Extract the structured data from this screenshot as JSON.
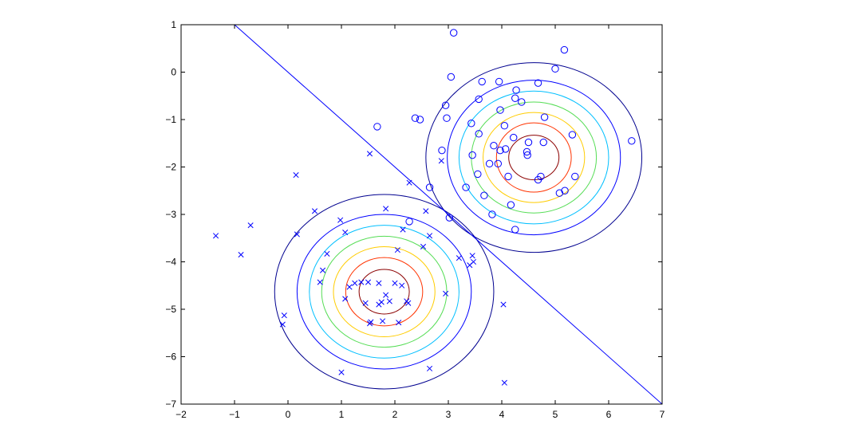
{
  "chart_data": {
    "type": "scatter",
    "title": "",
    "xlabel": "",
    "ylabel": "",
    "xlim": [
      -2,
      7
    ],
    "ylim": [
      -7,
      1
    ],
    "grid": false,
    "legend": "none",
    "x_ticks": [
      "−2",
      "−1",
      "0",
      "1",
      "2",
      "3",
      "4",
      "5",
      "6",
      "7"
    ],
    "y_ticks": [
      "1",
      "0",
      "−1",
      "−2",
      "−3",
      "−4",
      "−5",
      "−6",
      "−7"
    ],
    "x_tick_values": [
      -2,
      -1,
      0,
      1,
      2,
      3,
      4,
      5,
      6,
      7
    ],
    "y_tick_values": [
      1,
      0,
      -1,
      -2,
      -3,
      -4,
      -5,
      -6,
      -7
    ],
    "series": [
      {
        "marker": "circle",
        "color": "#0000ff",
        "points": [
          [
            3.1,
            0.83
          ],
          [
            5.17,
            0.47
          ],
          [
            3.05,
            -0.1
          ],
          [
            5.0,
            0.07
          ],
          [
            3.63,
            -0.2
          ],
          [
            3.95,
            -0.2
          ],
          [
            4.68,
            -0.23
          ],
          [
            4.27,
            -0.38
          ],
          [
            3.57,
            -0.57
          ],
          [
            4.25,
            -0.55
          ],
          [
            4.37,
            -0.63
          ],
          [
            2.95,
            -0.7
          ],
          [
            3.97,
            -0.8
          ],
          [
            1.67,
            -1.15
          ],
          [
            2.38,
            -0.97
          ],
          [
            2.47,
            -1.0
          ],
          [
            2.97,
            -0.97
          ],
          [
            4.8,
            -0.95
          ],
          [
            3.43,
            -1.08
          ],
          [
            4.05,
            -1.13
          ],
          [
            3.57,
            -1.3
          ],
          [
            5.32,
            -1.32
          ],
          [
            4.22,
            -1.38
          ],
          [
            4.78,
            -1.48
          ],
          [
            3.85,
            -1.55
          ],
          [
            4.5,
            -1.48
          ],
          [
            2.88,
            -1.65
          ],
          [
            3.97,
            -1.65
          ],
          [
            4.07,
            -1.62
          ],
          [
            4.47,
            -1.68
          ],
          [
            4.48,
            -1.75
          ],
          [
            3.45,
            -1.75
          ],
          [
            3.77,
            -1.93
          ],
          [
            3.93,
            -1.93
          ],
          [
            4.12,
            -2.2
          ],
          [
            3.55,
            -2.15
          ],
          [
            4.73,
            -2.2
          ],
          [
            5.37,
            -2.2
          ],
          [
            4.68,
            -2.27
          ],
          [
            3.33,
            -2.43
          ],
          [
            2.65,
            -2.43
          ],
          [
            5.18,
            -2.5
          ],
          [
            5.08,
            -2.55
          ],
          [
            3.67,
            -2.6
          ],
          [
            4.17,
            -2.8
          ],
          [
            3.82,
            -3.0
          ],
          [
            3.02,
            -3.07
          ],
          [
            2.27,
            -3.15
          ],
          [
            4.25,
            -3.32
          ],
          [
            6.43,
            -1.45
          ]
        ]
      },
      {
        "marker": "x",
        "color": "#0000ff",
        "points": [
          [
            1.53,
            -1.72
          ],
          [
            2.87,
            -1.87
          ],
          [
            0.15,
            -2.17
          ],
          [
            2.27,
            -2.33
          ],
          [
            0.5,
            -2.93
          ],
          [
            1.83,
            -2.88
          ],
          [
            2.58,
            -2.93
          ],
          [
            -1.35,
            -3.45
          ],
          [
            -0.7,
            -3.23
          ],
          [
            0.17,
            -3.42
          ],
          [
            0.98,
            -3.12
          ],
          [
            1.07,
            -3.38
          ],
          [
            2.15,
            -3.32
          ],
          [
            2.65,
            -3.45
          ],
          [
            -0.88,
            -3.85
          ],
          [
            0.73,
            -3.83
          ],
          [
            2.53,
            -3.68
          ],
          [
            2.05,
            -3.75
          ],
          [
            3.2,
            -3.92
          ],
          [
            3.45,
            -3.87
          ],
          [
            3.47,
            -4.0
          ],
          [
            3.4,
            -4.07
          ],
          [
            0.65,
            -4.18
          ],
          [
            0.6,
            -4.43
          ],
          [
            1.37,
            -4.43
          ],
          [
            1.5,
            -4.43
          ],
          [
            1.25,
            -4.45
          ],
          [
            1.7,
            -4.45
          ],
          [
            2.0,
            -4.45
          ],
          [
            2.13,
            -4.5
          ],
          [
            1.15,
            -4.53
          ],
          [
            2.95,
            -4.67
          ],
          [
            1.07,
            -4.78
          ],
          [
            1.83,
            -4.7
          ],
          [
            1.9,
            -4.83
          ],
          [
            2.22,
            -4.83
          ],
          [
            1.75,
            -4.85
          ],
          [
            1.45,
            -4.87
          ],
          [
            1.7,
            -4.9
          ],
          [
            4.03,
            -4.9
          ],
          [
            -0.07,
            -5.13
          ],
          [
            1.55,
            -5.27
          ],
          [
            1.77,
            -5.25
          ],
          [
            2.07,
            -5.28
          ],
          [
            -0.1,
            -5.32
          ],
          [
            1.53,
            -5.3
          ],
          [
            2.65,
            -6.25
          ],
          [
            1.0,
            -6.33
          ],
          [
            4.05,
            -6.55
          ],
          [
            2.25,
            -4.87
          ]
        ]
      }
    ],
    "decision_boundary": {
      "points": [
        [
          -1,
          1
        ],
        [
          7,
          -7
        ]
      ],
      "color": "#0000ff"
    },
    "contours": [
      {
        "center": [
          4.6,
          -1.8
        ],
        "rings": [
          {
            "rx": 2.02,
            "ry": 2.0,
            "color": "#00008f"
          },
          {
            "rx": 1.62,
            "ry": 1.63,
            "color": "#0000ff"
          },
          {
            "rx": 1.4,
            "ry": 1.4,
            "color": "#00bfff"
          },
          {
            "rx": 1.17,
            "ry": 1.17,
            "color": "#55dd55"
          },
          {
            "rx": 0.95,
            "ry": 0.95,
            "color": "#ffcc00"
          },
          {
            "rx": 0.7,
            "ry": 0.73,
            "color": "#ff3300"
          },
          {
            "rx": 0.47,
            "ry": 0.47,
            "color": "#8b0000"
          }
        ]
      },
      {
        "center": [
          1.8,
          -4.63
        ],
        "rings": [
          {
            "rx": 2.05,
            "ry": 2.05,
            "color": "#00008f"
          },
          {
            "rx": 1.63,
            "ry": 1.63,
            "color": "#0000ff"
          },
          {
            "rx": 1.4,
            "ry": 1.4,
            "color": "#00bfff"
          },
          {
            "rx": 1.17,
            "ry": 1.17,
            "color": "#55dd55"
          },
          {
            "rx": 0.95,
            "ry": 0.95,
            "color": "#ffcc00"
          },
          {
            "rx": 0.72,
            "ry": 0.72,
            "color": "#ff3300"
          },
          {
            "rx": 0.47,
            "ry": 0.47,
            "color": "#8b0000"
          }
        ]
      }
    ]
  }
}
